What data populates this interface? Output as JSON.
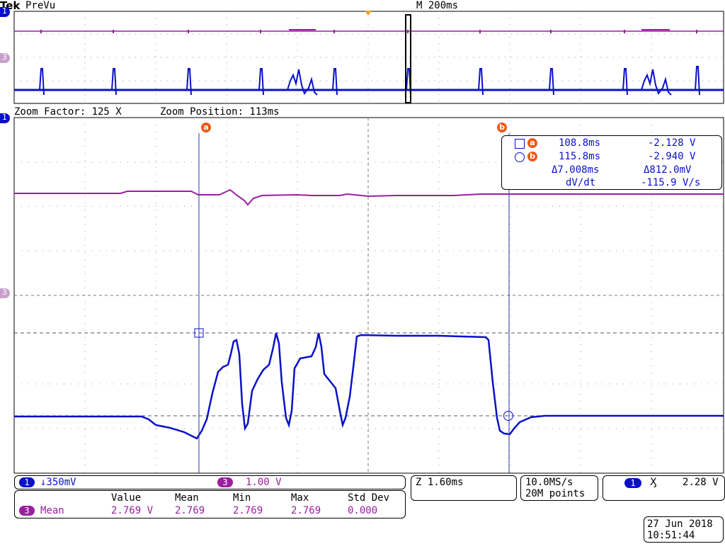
{
  "header": {
    "brand": "Tek",
    "mode": "PreVu",
    "timebase": "M 200ms"
  },
  "zoom": {
    "factor_label": "Zoom Factor: 125 X",
    "position_label": "Zoom Position: 113ms"
  },
  "channel_markers": {
    "ch1": "1",
    "ch3": "3"
  },
  "cursors": {
    "a_label": "a",
    "b_label": "b",
    "readout": {
      "a_time": "108.8ms",
      "a_volt": "-2.128 V",
      "b_time": "115.8ms",
      "b_volt": "-2.940 V",
      "delta_time": "Δ7.008ms",
      "delta_volt": "Δ812.0mV",
      "dvdt_label": "dV/dt",
      "dvdt_value": "-115.9 V/s"
    }
  },
  "bottom": {
    "ch1_badge": "1",
    "ch1_scale": "↓350mV",
    "ch3_badge": "3",
    "ch3_scale": "1.00 V",
    "zoom_time": "Z 1.60ms",
    "sample_rate": "10.0MS/s",
    "record_length": "20M points",
    "trigger_badge": "1",
    "trigger_symbol": "Ӽ",
    "trigger_level": "2.28 V",
    "date": "27 Jun  2018",
    "time": "10:51:44"
  },
  "measurements": {
    "headers": [
      "Value",
      "Mean",
      "Min",
      "Max",
      "Std Dev"
    ],
    "row": {
      "badge": "3",
      "name": "Mean",
      "values": [
        "2.769 V",
        "2.769",
        "2.769",
        "2.769",
        "0.000"
      ]
    }
  },
  "colors": {
    "ch1": "#0a10c8",
    "ch3": "#9a1ea0",
    "cursor_badge": "#f05a14",
    "marker_orange": "#f0a020"
  }
}
